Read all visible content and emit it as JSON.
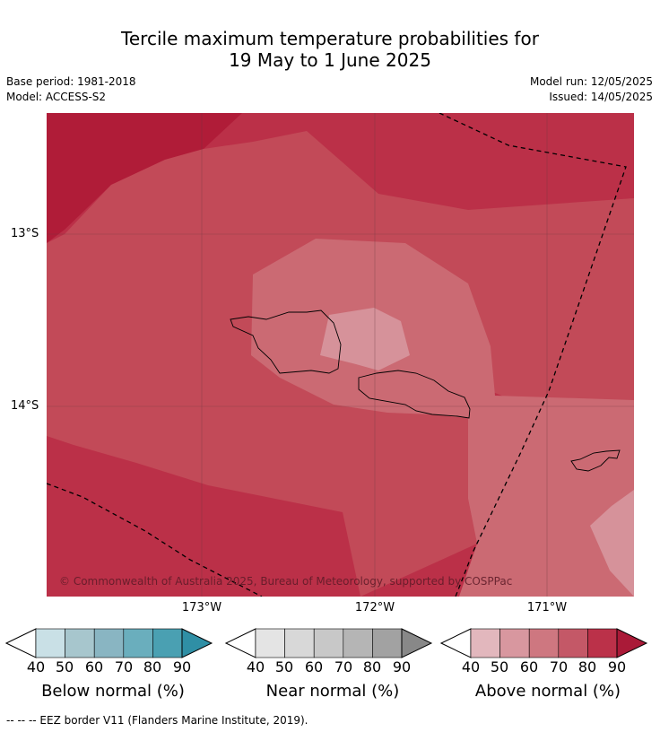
{
  "title": {
    "line1": "Tercile maximum temperature probabilities for",
    "line2": "19 May to 1 June 2025"
  },
  "meta": {
    "base_period": "Base period: 1981-2018",
    "model": "Model: ACCESS-S2",
    "model_run": "Model run: 12/05/2025",
    "issued": "Issued: 14/05/2025"
  },
  "map": {
    "lat_labels": [
      "13°S",
      "14°S"
    ],
    "lon_labels": [
      "173°W",
      "172°W",
      "171°W"
    ],
    "copyright": "© Commonwealth of Australia 2025, Bureau of Meteorology, supported by COSPPac",
    "shading_colors": {
      "above_90": "#b01c38",
      "above_80": "#bb3048",
      "above_70": "#c24a58",
      "above_60": "#cb6a73",
      "above_50": "#d6929a"
    }
  },
  "legends": [
    {
      "title": "Below normal (%)",
      "ticks": [
        "40",
        "50",
        "60",
        "70",
        "80",
        "90"
      ],
      "colors": [
        "#c9e0e6",
        "#a7c6cd",
        "#89b5c2",
        "#6aaebd",
        "#4aa0b2",
        "#2f8fa5"
      ]
    },
    {
      "title": "Near normal (%)",
      "ticks": [
        "40",
        "50",
        "60",
        "70",
        "80",
        "90"
      ],
      "colors": [
        "#e4e4e4",
        "#d8d8d8",
        "#c8c8c8",
        "#b5b5b5",
        "#a2a2a2",
        "#888888"
      ]
    },
    {
      "title": "Above normal (%)",
      "ticks": [
        "40",
        "50",
        "60",
        "70",
        "80",
        "90"
      ],
      "colors": [
        "#e2b7bd",
        "#d8979f",
        "#ce7780",
        "#c45867",
        "#bb3149",
        "#aa1a38"
      ]
    }
  ],
  "footnote": "--  --  -- EEZ border V11 (Flanders Marine Institute, 2019)."
}
